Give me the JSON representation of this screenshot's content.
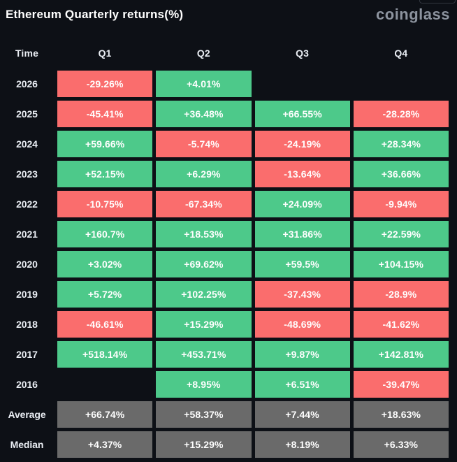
{
  "header": {
    "title": "Ethereum Quarterly returns(%)",
    "brand": "coinglass"
  },
  "colors": {
    "background": "#0d1016",
    "positive": "#4dc98a",
    "negative": "#fa6d6d",
    "summary": "#6a6a6a",
    "cell_text": "#fefefe",
    "label_text": "#e9edf3",
    "brand_text": "#8c939e"
  },
  "chart_data": {
    "type": "table",
    "title": "Ethereum Quarterly returns(%)",
    "legend": "green = positive quarterly return, red = negative quarterly return, gray = summary rows",
    "columns": [
      "Time",
      "Q1",
      "Q2",
      "Q3",
      "Q4"
    ],
    "rows": [
      {
        "label": "2026",
        "kind": "year",
        "values": [
          "-29.26%",
          "+4.01%",
          null,
          null
        ]
      },
      {
        "label": "2025",
        "kind": "year",
        "values": [
          "-45.41%",
          "+36.48%",
          "+66.55%",
          "-28.28%"
        ]
      },
      {
        "label": "2024",
        "kind": "year",
        "values": [
          "+59.66%",
          "-5.74%",
          "-24.19%",
          "+28.34%"
        ]
      },
      {
        "label": "2023",
        "kind": "year",
        "values": [
          "+52.15%",
          "+6.29%",
          "-13.64%",
          "+36.66%"
        ]
      },
      {
        "label": "2022",
        "kind": "year",
        "values": [
          "-10.75%",
          "-67.34%",
          "+24.09%",
          "-9.94%"
        ]
      },
      {
        "label": "2021",
        "kind": "year",
        "values": [
          "+160.7%",
          "+18.53%",
          "+31.86%",
          "+22.59%"
        ]
      },
      {
        "label": "2020",
        "kind": "year",
        "values": [
          "+3.02%",
          "+69.62%",
          "+59.5%",
          "+104.15%"
        ]
      },
      {
        "label": "2019",
        "kind": "year",
        "values": [
          "+5.72%",
          "+102.25%",
          "-37.43%",
          "-28.9%"
        ]
      },
      {
        "label": "2018",
        "kind": "year",
        "values": [
          "-46.61%",
          "+15.29%",
          "-48.69%",
          "-41.62%"
        ]
      },
      {
        "label": "2017",
        "kind": "year",
        "values": [
          "+518.14%",
          "+453.71%",
          "+9.87%",
          "+142.81%"
        ]
      },
      {
        "label": "2016",
        "kind": "year",
        "values": [
          null,
          "+8.95%",
          "+6.51%",
          "-39.47%"
        ]
      },
      {
        "label": "Average",
        "kind": "summary",
        "values": [
          "+66.74%",
          "+58.37%",
          "+7.44%",
          "+18.63%"
        ]
      },
      {
        "label": "Median",
        "kind": "summary",
        "values": [
          "+4.37%",
          "+15.29%",
          "+8.19%",
          "+6.33%"
        ]
      }
    ]
  }
}
